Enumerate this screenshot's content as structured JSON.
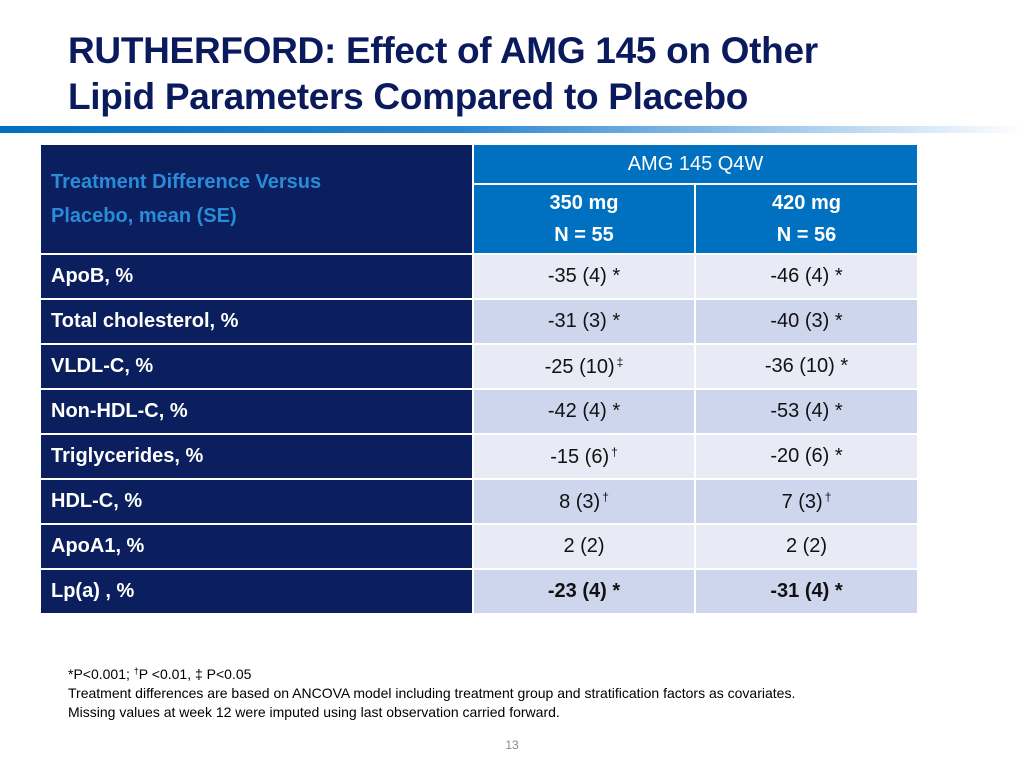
{
  "slide": {
    "title_line1": "RUTHERFORD:  Effect of AMG 145 on Other",
    "title_line2": "Lipid Parameters Compared to Placebo",
    "accent_color": "#0070C0",
    "page_number": "13"
  },
  "table": {
    "row_header_label_line1": "Treatment Difference Versus",
    "row_header_label_line2": "Placebo, mean (SE)",
    "group_header": "AMG 145 Q4W",
    "columns": [
      {
        "dose": "350 mg",
        "n": "N = 55"
      },
      {
        "dose": "420 mg",
        "n": "N = 56"
      }
    ],
    "rows": [
      {
        "label": "ApoB, %",
        "v1": "-35 (4)",
        "m1": "*",
        "v2": "-46 (4)",
        "m2": "*"
      },
      {
        "label": "Total cholesterol, %",
        "v1": "-31 (3)",
        "m1": "*",
        "v2": "-40 (3)",
        "m2": "*"
      },
      {
        "label": "VLDL-C, %",
        "v1": "-25 (10)",
        "m1": "‡",
        "v2": "-36 (10)",
        "m2": "*"
      },
      {
        "label": "Non-HDL-C, %",
        "v1": "-42 (4)",
        "m1": "*",
        "v2": "-53 (4)",
        "m2": "*"
      },
      {
        "label": "Triglycerides, %",
        "v1": "-15 (6)",
        "m1": "†",
        "v2": "-20 (6)",
        "m2": "*"
      },
      {
        "label": "HDL-C, %",
        "v1": "8 (3)",
        "m1": "†",
        "v2": "7 (3)",
        "m2": "†"
      },
      {
        "label": "ApoA1, %",
        "v1": "2 (2)",
        "m1": "",
        "v2": "2 (2)",
        "m2": ""
      },
      {
        "label": "Lp(a) , %",
        "v1": "-23 (4)",
        "m1": "*",
        "v2": "-31 (4)",
        "m2": "*"
      }
    ]
  },
  "footnotes": {
    "sig_part1": "*P<0.001; ",
    "sig_dagger": "†",
    "sig_part2": "P <0.01, ‡ P<0.05",
    "line2": "Treatment differences are based on ANCOVA model including treatment group and stratification factors as covariates.",
    "line3": "Missing values at week 12 were imputed using last observation carried forward."
  }
}
